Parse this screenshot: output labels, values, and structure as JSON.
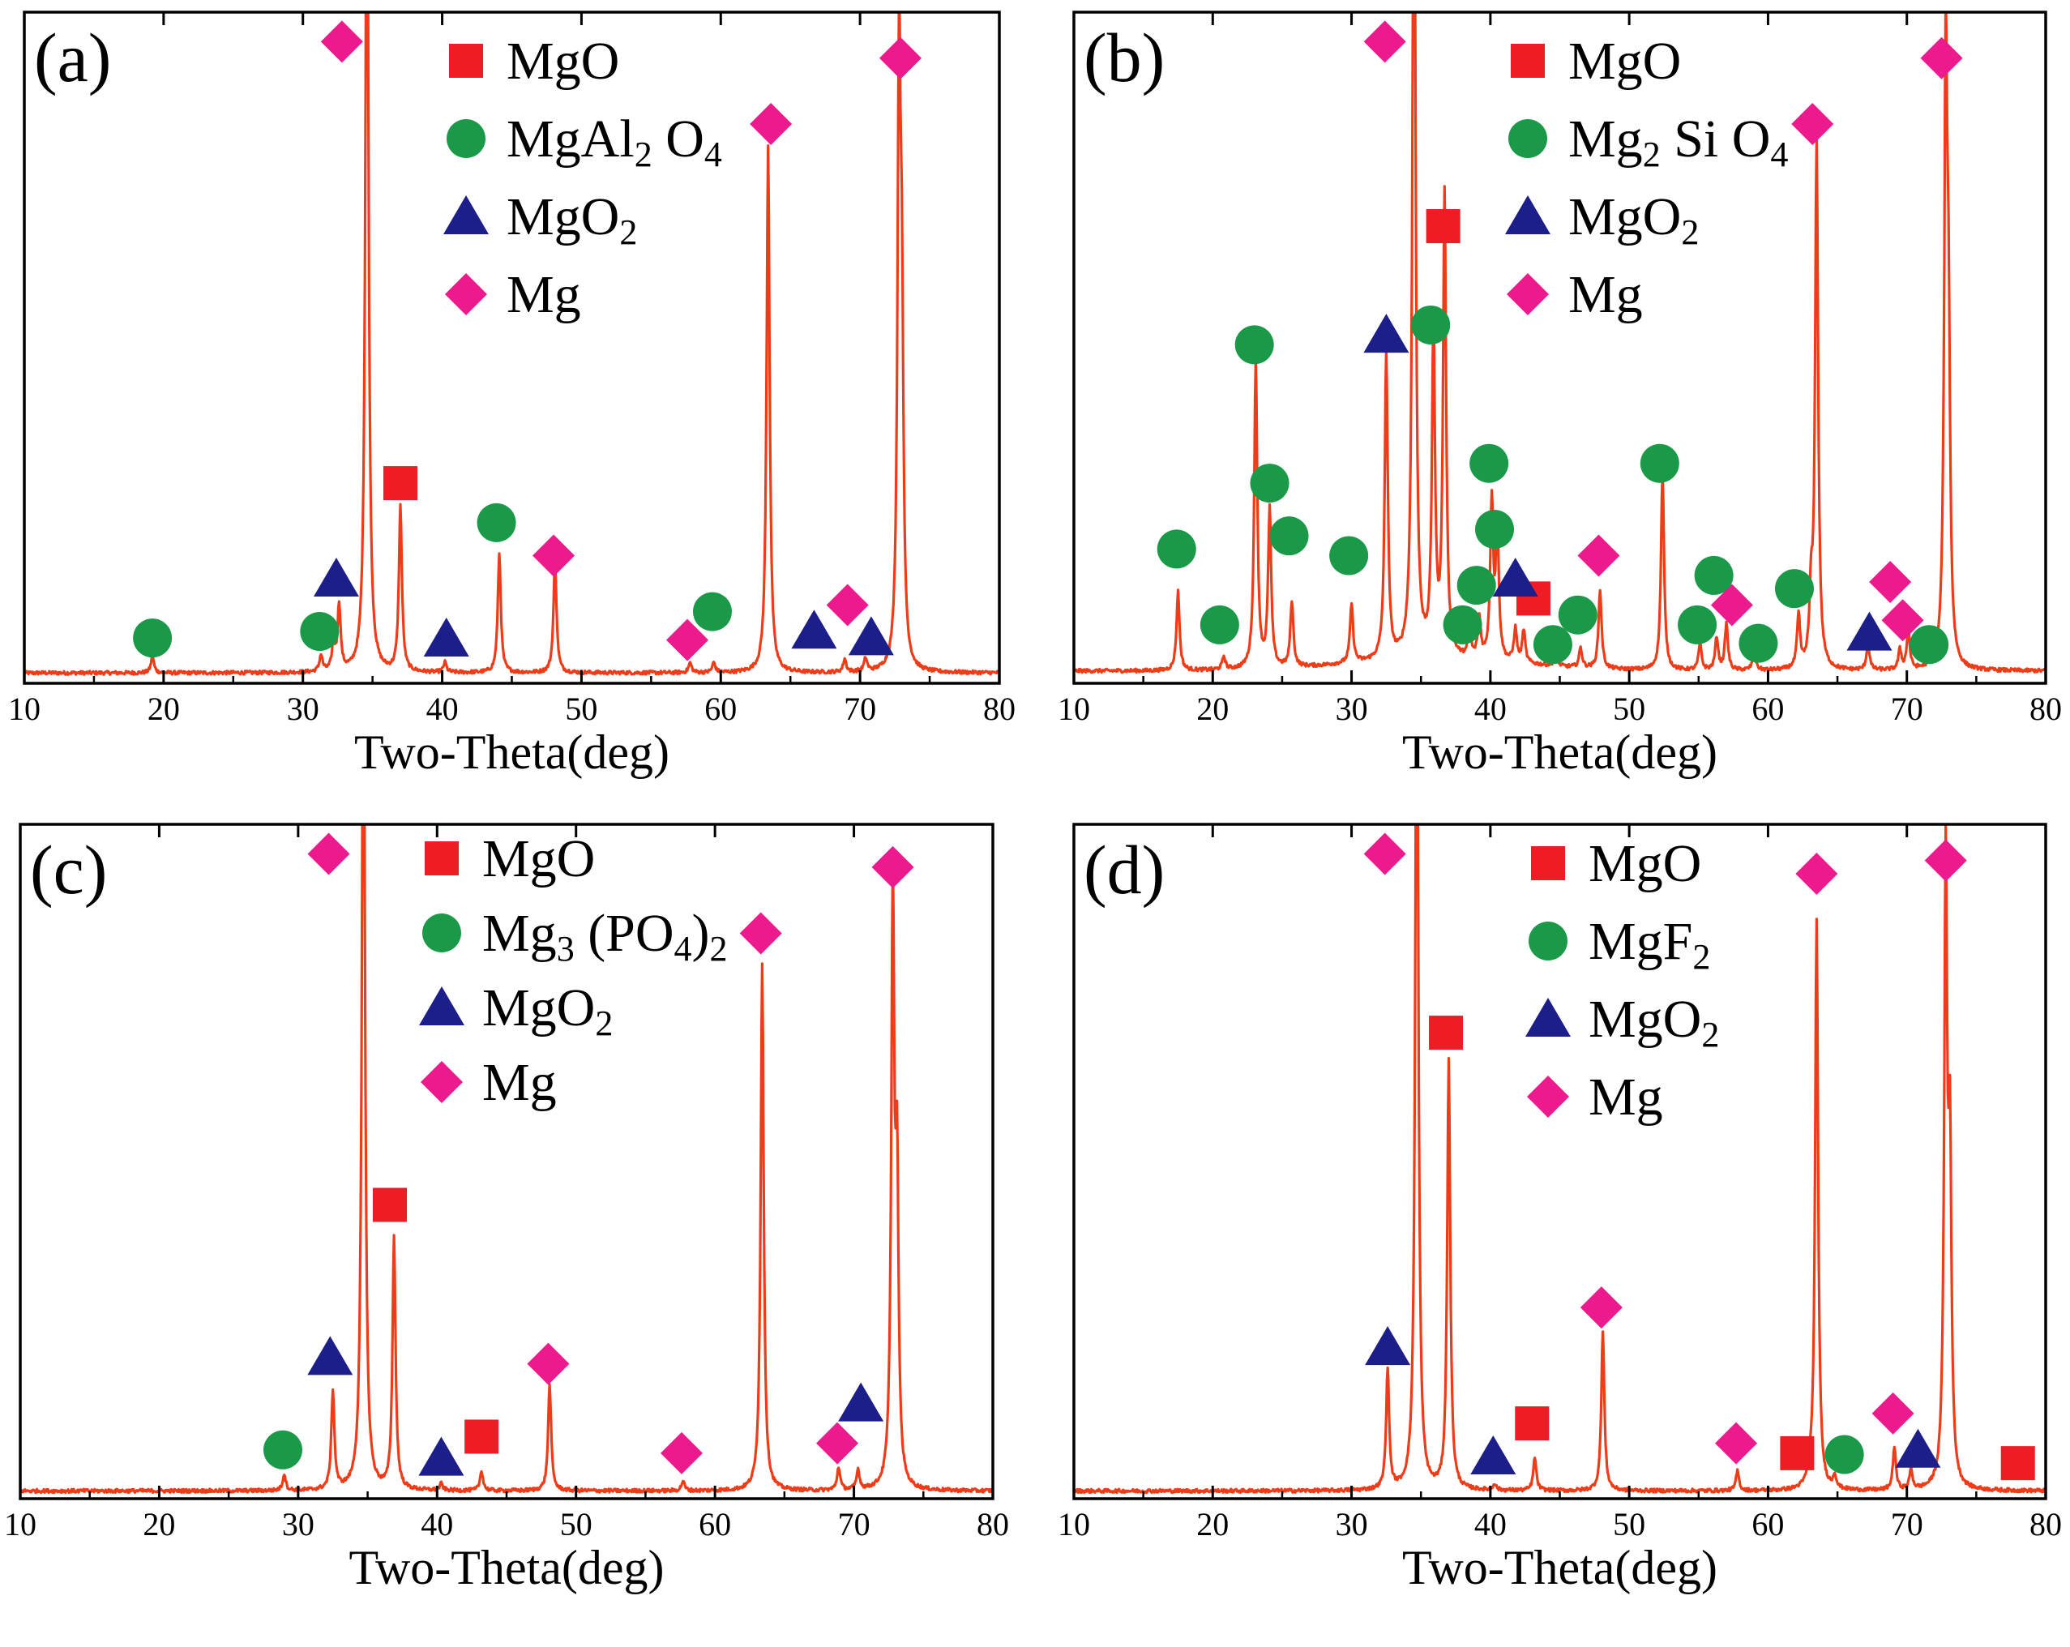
{
  "figure": {
    "panels": [
      {
        "id": "a",
        "label": "(a)",
        "legend": [
          {
            "symbol": "square",
            "text": "MgO"
          },
          {
            "symbol": "circle",
            "text": "MgAl2O4",
            "sub": [
              "2",
              "4"
            ],
            "rich": [
              [
                "MgAl",
                ""
              ],
              [
                "2",
                "sub"
              ],
              [
                " O",
                ""
              ],
              [
                "4",
                "sub"
              ]
            ]
          },
          {
            "symbol": "triangle",
            "text": "MgO2",
            "rich": [
              [
                "MgO",
                ""
              ],
              [
                "2",
                "sub"
              ]
            ]
          },
          {
            "symbol": "diamond",
            "text": "Mg"
          }
        ]
      },
      {
        "id": "b",
        "label": "(b)",
        "legend": [
          {
            "symbol": "square",
            "text": "MgO"
          },
          {
            "symbol": "circle",
            "text": "Mg2SiO4",
            "rich": [
              [
                "Mg",
                ""
              ],
              [
                "2",
                "sub"
              ],
              [
                " Si O",
                ""
              ],
              [
                "4",
                "sub"
              ]
            ]
          },
          {
            "symbol": "triangle",
            "text": "MgO2",
            "rich": [
              [
                "MgO",
                ""
              ],
              [
                "2",
                "sub"
              ]
            ]
          },
          {
            "symbol": "diamond",
            "text": "Mg"
          }
        ]
      },
      {
        "id": "c",
        "label": "(c)",
        "legend": [
          {
            "symbol": "square",
            "text": "MgO"
          },
          {
            "symbol": "circle",
            "text": "Mg3(PO4)2",
            "rich": [
              [
                "Mg",
                ""
              ],
              [
                "3",
                "sub"
              ],
              [
                " (PO",
                ""
              ],
              [
                "4",
                "sub"
              ],
              [
                ")",
                ""
              ],
              [
                "2",
                "sub"
              ]
            ]
          },
          {
            "symbol": "triangle",
            "text": "MgO2",
            "rich": [
              [
                "MgO",
                ""
              ],
              [
                "2",
                "sub"
              ]
            ]
          },
          {
            "symbol": "diamond",
            "text": "Mg"
          }
        ]
      },
      {
        "id": "d",
        "label": "(d)",
        "legend": [
          {
            "symbol": "square",
            "text": "MgO"
          },
          {
            "symbol": "circle",
            "text": "MgF2",
            "rich": [
              [
                "MgF",
                ""
              ],
              [
                "2",
                "sub"
              ]
            ]
          },
          {
            "symbol": "triangle",
            "text": "MgO2",
            "rich": [
              [
                "MgO",
                ""
              ],
              [
                "2",
                "sub"
              ]
            ]
          },
          {
            "symbol": "diamond",
            "text": "Mg"
          }
        ]
      }
    ]
  },
  "colors": {
    "line": "#ee3c18",
    "MgO": "#ee1c24",
    "secondary_phase": "#1a9a48",
    "MgO2": "#1c1f8a",
    "Mg": "#ec1a8c"
  },
  "chart_data": [
    {
      "type": "line",
      "panel": "a",
      "title": "(a)",
      "xlabel": "Two-Theta(deg)",
      "ylabel": "",
      "xlim": [
        10,
        80
      ],
      "ylim": [
        0,
        100
      ],
      "xticks": [
        10,
        20,
        30,
        40,
        50,
        60,
        70,
        80
      ],
      "baseline": 1.2,
      "peaks": [
        [
          19.2,
          2.5
        ],
        [
          31.3,
          2.5
        ],
        [
          32.2,
          4
        ],
        [
          32.6,
          10
        ],
        [
          34.6,
          140
        ],
        [
          37.0,
          25
        ],
        [
          40.2,
          1.5
        ],
        [
          44.1,
          18
        ],
        [
          48.1,
          17
        ],
        [
          57.8,
          1.5
        ],
        [
          59.5,
          1.5
        ],
        [
          63.4,
          80
        ],
        [
          68.9,
          2
        ],
        [
          70.4,
          2
        ],
        [
          72.8,
          90
        ],
        [
          73.0,
          47
        ]
      ],
      "markers": [
        {
          "phase": "Mg",
          "symbol": "diamond",
          "x": 32.8,
          "y": 97
        },
        {
          "phase": "MgO",
          "symbol": "square",
          "x": 37.0,
          "y": 30
        },
        {
          "phase": "MgAl2O4",
          "symbol": "circle",
          "x": 19.2,
          "y": 6.5
        },
        {
          "phase": "MgAl2O4",
          "symbol": "circle",
          "x": 31.2,
          "y": 7.5
        },
        {
          "phase": "MgAl2O4",
          "symbol": "circle",
          "x": 43.9,
          "y": 24
        },
        {
          "phase": "MgAl2O4",
          "symbol": "circle",
          "x": 59.4,
          "y": 10.5
        },
        {
          "phase": "MgO2",
          "symbol": "triangle",
          "x": 32.4,
          "y": 15.5
        },
        {
          "phase": "MgO2",
          "symbol": "triangle",
          "x": 40.3,
          "y": 6.4
        },
        {
          "phase": "MgO2",
          "symbol": "triangle",
          "x": 66.7,
          "y": 7.6
        },
        {
          "phase": "MgO2",
          "symbol": "triangle",
          "x": 70.8,
          "y": 6.6
        },
        {
          "phase": "Mg",
          "symbol": "diamond",
          "x": 48.0,
          "y": 19
        },
        {
          "phase": "Mg",
          "symbol": "diamond",
          "x": 57.6,
          "y": 6.2
        },
        {
          "phase": "Mg",
          "symbol": "diamond",
          "x": 63.6,
          "y": 84.5
        },
        {
          "phase": "Mg",
          "symbol": "diamond",
          "x": 69.1,
          "y": 11.5
        },
        {
          "phase": "Mg",
          "symbol": "diamond",
          "x": 72.9,
          "y": 94.5
        }
      ]
    },
    {
      "type": "line",
      "panel": "b",
      "title": "(b)",
      "xlabel": "Two-Theta(deg)",
      "ylabel": "",
      "xlim": [
        10,
        80
      ],
      "ylim": [
        0,
        100
      ],
      "xticks": [
        10,
        20,
        30,
        40,
        50,
        60,
        70,
        80
      ],
      "baseline": 1.5,
      "peaks": [
        [
          17.5,
          12
        ],
        [
          20.8,
          2
        ],
        [
          23.1,
          47
        ],
        [
          24.1,
          24
        ],
        [
          25.7,
          10
        ],
        [
          30.0,
          9
        ],
        [
          32.5,
          47
        ],
        [
          34.5,
          140
        ],
        [
          35.9,
          50
        ],
        [
          36.7,
          70
        ],
        [
          38.5,
          4
        ],
        [
          39.2,
          6
        ],
        [
          40.1,
          24
        ],
        [
          40.5,
          20
        ],
        [
          41.8,
          5
        ],
        [
          42.4,
          5
        ],
        [
          44.7,
          2
        ],
        [
          46.5,
          3
        ],
        [
          47.9,
          12
        ],
        [
          52.4,
          30
        ],
        [
          55.1,
          4
        ],
        [
          56.3,
          5
        ],
        [
          57.0,
          7
        ],
        [
          59.0,
          3
        ],
        [
          62.2,
          8
        ],
        [
          63.1,
          10
        ],
        [
          63.5,
          80
        ],
        [
          67.2,
          4
        ],
        [
          69.5,
          3
        ],
        [
          70.1,
          6
        ],
        [
          72.8,
          90
        ],
        [
          73.0,
          43
        ]
      ],
      "markers": [
        {
          "phase": "Mg",
          "symbol": "diamond",
          "x": 32.4,
          "y": 97
        },
        {
          "phase": "Mg2SiO4",
          "symbol": "circle",
          "x": 17.4,
          "y": 20
        },
        {
          "phase": "Mg2SiO4",
          "symbol": "circle",
          "x": 20.5,
          "y": 8.5
        },
        {
          "phase": "Mg2SiO4",
          "symbol": "circle",
          "x": 23.0,
          "y": 51
        },
        {
          "phase": "Mg2SiO4",
          "symbol": "circle",
          "x": 24.1,
          "y": 30
        },
        {
          "phase": "Mg2SiO4",
          "symbol": "circle",
          "x": 25.5,
          "y": 22
        },
        {
          "phase": "Mg2SiO4",
          "symbol": "circle",
          "x": 29.8,
          "y": 19
        },
        {
          "phase": "Mg2SiO4",
          "symbol": "circle",
          "x": 35.7,
          "y": 54
        },
        {
          "phase": "Mg2SiO4",
          "symbol": "circle",
          "x": 39.9,
          "y": 33
        },
        {
          "phase": "Mg2SiO4",
          "symbol": "circle",
          "x": 40.3,
          "y": 23
        },
        {
          "phase": "Mg2SiO4",
          "symbol": "circle",
          "x": 39.0,
          "y": 14.5
        },
        {
          "phase": "Mg2SiO4",
          "symbol": "circle",
          "x": 38.0,
          "y": 8.5
        },
        {
          "phase": "Mg2SiO4",
          "symbol": "circle",
          "x": 44.5,
          "y": 5.5
        },
        {
          "phase": "Mg2SiO4",
          "symbol": "circle",
          "x": 46.3,
          "y": 10
        },
        {
          "phase": "Mg2SiO4",
          "symbol": "circle",
          "x": 52.2,
          "y": 33
        },
        {
          "phase": "Mg2SiO4",
          "symbol": "circle",
          "x": 54.9,
          "y": 8.5
        },
        {
          "phase": "Mg2SiO4",
          "symbol": "circle",
          "x": 56.1,
          "y": 16
        },
        {
          "phase": "Mg2SiO4",
          "symbol": "circle",
          "x": 59.3,
          "y": 5.7
        },
        {
          "phase": "Mg2SiO4",
          "symbol": "circle",
          "x": 61.9,
          "y": 14
        },
        {
          "phase": "Mg2SiO4",
          "symbol": "circle",
          "x": 71.6,
          "y": 5.5
        },
        {
          "phase": "MgO",
          "symbol": "square",
          "x": 36.6,
          "y": 69
        },
        {
          "phase": "MgO",
          "symbol": "square",
          "x": 43.1,
          "y": 12.5
        },
        {
          "phase": "MgO2",
          "symbol": "triangle",
          "x": 32.5,
          "y": 52.5
        },
        {
          "phase": "MgO2",
          "symbol": "triangle",
          "x": 41.8,
          "y": 15.5
        },
        {
          "phase": "MgO2",
          "symbol": "triangle",
          "x": 67.3,
          "y": 7.3
        },
        {
          "phase": "Mg",
          "symbol": "diamond",
          "x": 47.8,
          "y": 19
        },
        {
          "phase": "Mg",
          "symbol": "diamond",
          "x": 57.4,
          "y": 11.5
        },
        {
          "phase": "Mg",
          "symbol": "diamond",
          "x": 63.2,
          "y": 84.5
        },
        {
          "phase": "Mg",
          "symbol": "diamond",
          "x": 68.8,
          "y": 15
        },
        {
          "phase": "Mg",
          "symbol": "diamond",
          "x": 69.7,
          "y": 9.2
        },
        {
          "phase": "Mg",
          "symbol": "diamond",
          "x": 72.5,
          "y": 94.5
        }
      ]
    },
    {
      "type": "line",
      "panel": "c",
      "title": "(c)",
      "xlabel": "Two-Theta(deg)",
      "ylabel": "",
      "xlim": [
        10,
        80
      ],
      "ylim": [
        0,
        100
      ],
      "xticks": [
        10,
        20,
        30,
        40,
        50,
        60,
        70,
        80
      ],
      "baseline": 0.8,
      "peaks": [
        [
          29.0,
          2.5
        ],
        [
          32.5,
          15
        ],
        [
          34.7,
          140
        ],
        [
          36.9,
          38
        ],
        [
          40.3,
          1
        ],
        [
          43.2,
          3
        ],
        [
          48.1,
          16
        ],
        [
          57.7,
          1.5
        ],
        [
          63.4,
          79.5
        ],
        [
          68.9,
          3.5
        ],
        [
          70.3,
          3
        ],
        [
          72.8,
          89
        ],
        [
          73.1,
          45
        ]
      ],
      "markers": [
        {
          "phase": "Mg",
          "symbol": "diamond",
          "x": 32.2,
          "y": 97
        },
        {
          "phase": "MgO",
          "symbol": "square",
          "x": 36.6,
          "y": 44
        },
        {
          "phase": "MgO",
          "symbol": "square",
          "x": 43.2,
          "y": 9
        },
        {
          "phase": "Mg3(PO4)2",
          "symbol": "circle",
          "x": 28.9,
          "y": 7
        },
        {
          "phase": "MgO2",
          "symbol": "triangle",
          "x": 32.3,
          "y": 21
        },
        {
          "phase": "MgO2",
          "symbol": "triangle",
          "x": 40.3,
          "y": 5.8
        },
        {
          "phase": "MgO2",
          "symbol": "triangle",
          "x": 70.5,
          "y": 14
        },
        {
          "phase": "Mg",
          "symbol": "diamond",
          "x": 48.0,
          "y": 20
        },
        {
          "phase": "Mg",
          "symbol": "diamond",
          "x": 57.6,
          "y": 6.5
        },
        {
          "phase": "Mg",
          "symbol": "diamond",
          "x": 63.3,
          "y": 85
        },
        {
          "phase": "Mg",
          "symbol": "diamond",
          "x": 68.8,
          "y": 8
        },
        {
          "phase": "Mg",
          "symbol": "diamond",
          "x": 72.8,
          "y": 95
        }
      ]
    },
    {
      "type": "line",
      "panel": "d",
      "title": "(d)",
      "xlabel": "Two-Theta(deg)",
      "ylabel": "",
      "xlim": [
        10,
        80
      ],
      "ylim": [
        0,
        100
      ],
      "xticks": [
        10,
        20,
        30,
        40,
        50,
        60,
        70,
        80
      ],
      "baseline": 0.8,
      "peaks": [
        [
          32.6,
          18
        ],
        [
          34.7,
          140
        ],
        [
          37.0,
          65
        ],
        [
          40.3,
          1
        ],
        [
          43.2,
          5
        ],
        [
          48.1,
          24
        ],
        [
          57.8,
          3
        ],
        [
          63.0,
          2
        ],
        [
          63.5,
          86
        ],
        [
          64.8,
          2
        ],
        [
          69.1,
          6.5
        ],
        [
          70.3,
          3
        ],
        [
          72.8,
          93
        ],
        [
          73.1,
          48
        ]
      ],
      "markers": [
        {
          "phase": "Mg",
          "symbol": "diamond",
          "x": 32.4,
          "y": 97
        },
        {
          "phase": "MgO",
          "symbol": "square",
          "x": 36.8,
          "y": 70
        },
        {
          "phase": "MgO",
          "symbol": "square",
          "x": 43.0,
          "y": 11
        },
        {
          "phase": "MgO",
          "symbol": "square",
          "x": 62.1,
          "y": 6.5
        },
        {
          "phase": "MgO",
          "symbol": "square",
          "x": 78.0,
          "y": 5
        },
        {
          "phase": "MgF2",
          "symbol": "circle",
          "x": 65.5,
          "y": 6.3
        },
        {
          "phase": "MgO2",
          "symbol": "triangle",
          "x": 32.6,
          "y": 22.5
        },
        {
          "phase": "MgO2",
          "symbol": "triangle",
          "x": 40.2,
          "y": 6
        },
        {
          "phase": "MgO2",
          "symbol": "triangle",
          "x": 70.8,
          "y": 7
        },
        {
          "phase": "Mg",
          "symbol": "diamond",
          "x": 48.0,
          "y": 28.5
        },
        {
          "phase": "Mg",
          "symbol": "diamond",
          "x": 57.7,
          "y": 8
        },
        {
          "phase": "Mg",
          "symbol": "diamond",
          "x": 63.5,
          "y": 94
        },
        {
          "phase": "Mg",
          "symbol": "diamond",
          "x": 69.0,
          "y": 12.5
        },
        {
          "phase": "Mg",
          "symbol": "diamond",
          "x": 72.8,
          "y": 96
        }
      ]
    }
  ]
}
